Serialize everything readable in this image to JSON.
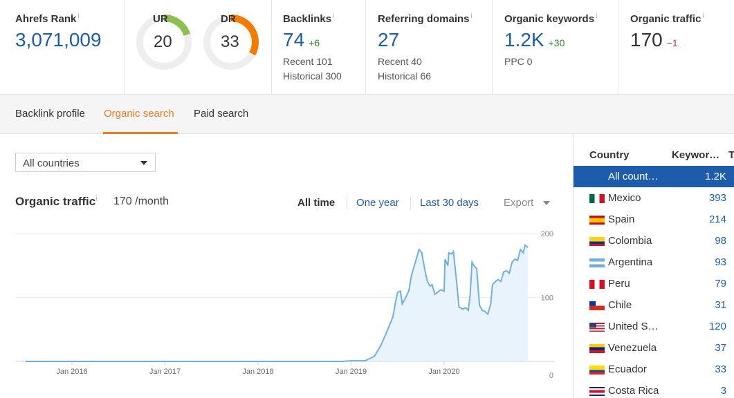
{
  "metrics": {
    "ahrefs_rank": {
      "label": "Ahrefs Rank",
      "info": "i",
      "value": "3,071,009"
    },
    "ur": {
      "label": "UR",
      "info": "i",
      "value": "20",
      "fill": 0.2,
      "color": "#8cc152"
    },
    "dr": {
      "label": "DR",
      "info": "i",
      "value": "33",
      "fill": 0.33,
      "color": "#f57b00"
    },
    "backlinks": {
      "label": "Backlinks",
      "info": "i",
      "value": "74",
      "delta": "+6",
      "recent": "Recent 101",
      "historical": "Historical 300"
    },
    "referring_domains": {
      "label": "Referring domains",
      "info": "i",
      "value": "27",
      "recent": "Recent 40",
      "historical": "Historical 66"
    },
    "organic_keywords": {
      "label": "Organic keywords",
      "info": "i",
      "value": "1.2K",
      "delta": "+30",
      "ppc": "PPC 0"
    },
    "organic_traffic": {
      "label": "Organic traffic",
      "info": "i",
      "value": "170",
      "delta": "−1"
    }
  },
  "tabs": [
    {
      "label": "Backlink profile",
      "active": false
    },
    {
      "label": "Organic search",
      "active": true
    },
    {
      "label": "Paid search",
      "active": false
    }
  ],
  "filter": {
    "country_select": "All countries"
  },
  "traffic_section": {
    "title": "Organic traffic",
    "info": "i",
    "value": "170 /month",
    "ranges": [
      "All time",
      "One year",
      "Last 30 days"
    ],
    "active_range": "All time",
    "export_label": "Export"
  },
  "chart_data": {
    "type": "area",
    "x_tick_labels": [
      "Jan 2016",
      "Jan 2017",
      "Jan 2018",
      "Jan 2019",
      "Jan 2020"
    ],
    "y_tick_labels": [
      "0",
      "100",
      "200"
    ],
    "ylim": [
      0,
      200
    ],
    "line_color": "#6fb0e0",
    "fill_color": "#e8f3fc",
    "x": [
      2015.5,
      2018.9,
      2019.0,
      2019.15,
      2019.25,
      2019.32,
      2019.38,
      2019.45,
      2019.48,
      2019.5,
      2019.53,
      2019.55,
      2019.58,
      2019.62,
      2019.65,
      2019.7,
      2019.73,
      2019.76,
      2019.79,
      2019.82,
      2019.85,
      2019.87,
      2019.9,
      2019.93,
      2019.96,
      2020.0,
      2020.01,
      2020.04,
      2020.05,
      2020.08,
      2020.1,
      2020.13,
      2020.16,
      2020.2,
      2020.23,
      2020.26,
      2020.28,
      2020.3,
      2020.32,
      2020.35,
      2020.38,
      2020.41,
      2020.44,
      2020.47,
      2020.5,
      2020.52,
      2020.55,
      2020.58,
      2020.61,
      2020.64,
      2020.67,
      2020.7,
      2020.73,
      2020.76,
      2020.79,
      2020.82,
      2020.85,
      2020.87,
      2020.9
    ],
    "y": [
      0,
      0,
      1,
      1,
      8,
      25,
      45,
      70,
      95,
      108,
      110,
      90,
      98,
      110,
      135,
      160,
      175,
      170,
      145,
      125,
      118,
      120,
      105,
      108,
      112,
      110,
      160,
      150,
      170,
      168,
      172,
      130,
      85,
      82,
      84,
      80,
      105,
      155,
      150,
      145,
      88,
      80,
      78,
      74,
      90,
      120,
      125,
      128,
      125,
      140,
      142,
      138,
      155,
      160,
      158,
      175,
      170,
      182,
      178
    ]
  },
  "right_panel": {
    "col_country": "Country",
    "col_keywords": "Keywor…",
    "col_extra": "T",
    "rows": [
      {
        "name": "All count…",
        "value": "1.2K",
        "flag": "",
        "selected": true
      },
      {
        "name": "Mexico",
        "value": "393",
        "flag": "mexico-flag-icon"
      },
      {
        "name": "Spain",
        "value": "214",
        "flag": "spain-flag-icon"
      },
      {
        "name": "Colombia",
        "value": "98",
        "flag": "colombia-flag-icon"
      },
      {
        "name": "Argentina",
        "value": "93",
        "flag": "argentina-flag-icon"
      },
      {
        "name": "Peru",
        "value": "79",
        "flag": "peru-flag-icon"
      },
      {
        "name": "Chile",
        "value": "31",
        "flag": "chile-flag-icon"
      },
      {
        "name": "United S…",
        "value": "120",
        "flag": "united-states-flag-icon"
      },
      {
        "name": "Venezuela",
        "value": "37",
        "flag": "venezuela-flag-icon"
      },
      {
        "name": "Ecuador",
        "value": "33",
        "flag": "ecuador-flag-icon"
      },
      {
        "name": "Costa Rica",
        "value": "3",
        "flag": "costa-rica-flag-icon"
      }
    ]
  }
}
